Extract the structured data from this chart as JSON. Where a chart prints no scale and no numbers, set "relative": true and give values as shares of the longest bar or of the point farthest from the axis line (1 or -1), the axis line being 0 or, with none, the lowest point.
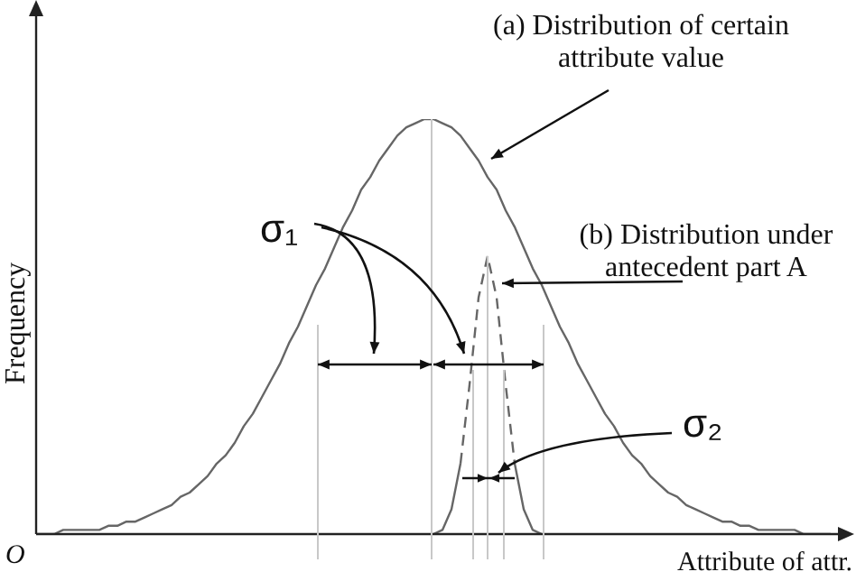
{
  "chart_data": {
    "type": "line",
    "relative": true,
    "xlabel": "Attribute of attr.",
    "ylabel": "Frequency",
    "legend": false,
    "grid": false,
    "marker": "none",
    "categories": [
      null,
      null,
      null,
      null,
      null,
      null,
      null,
      null,
      null,
      null,
      null,
      null,
      null,
      null,
      null,
      null,
      null,
      null,
      null,
      null,
      null,
      null,
      null,
      null,
      null,
      null,
      null,
      null,
      null,
      null,
      null,
      null,
      null,
      null,
      null,
      null,
      null,
      null,
      null,
      null,
      null,
      null,
      null,
      null,
      null,
      null,
      null,
      null,
      null,
      null,
      null,
      null,
      null,
      null,
      null,
      null,
      null,
      null,
      null,
      null,
      null,
      null,
      null,
      null,
      null,
      null,
      null,
      null,
      null,
      null,
      null,
      null,
      null,
      null,
      null,
      null,
      null,
      null,
      null,
      null,
      null,
      null,
      null,
      null,
      null,
      null,
      null,
      null,
      null
    ],
    "series": [
      {
        "color": "#666666",
        "line_style": "solid",
        "values": [
          0.0,
          0.0,
          0.0,
          0.01,
          0.01,
          0.01,
          0.01,
          0.01,
          0.02,
          0.02,
          0.03,
          0.03,
          0.04,
          0.05,
          0.06,
          0.07,
          0.09,
          0.1,
          0.12,
          0.14,
          0.17,
          0.19,
          0.22,
          0.26,
          0.29,
          0.33,
          0.37,
          0.41,
          0.46,
          0.5,
          0.55,
          0.6,
          0.64,
          0.69,
          0.74,
          0.78,
          0.83,
          0.86,
          0.9,
          0.93,
          0.96,
          0.98,
          0.99,
          1.0,
          1.0,
          0.99,
          0.98,
          0.96,
          0.93,
          0.9,
          0.86,
          0.83,
          0.78,
          0.74,
          0.69,
          0.64,
          0.6,
          0.55,
          0.5,
          0.46,
          0.41,
          0.37,
          0.33,
          0.29,
          0.26,
          0.22,
          0.19,
          0.17,
          0.14,
          0.12,
          0.1,
          0.09,
          0.07,
          0.06,
          0.05,
          0.04,
          0.03,
          0.03,
          0.02,
          0.02,
          0.01,
          0.01,
          0.01,
          0.01,
          0.01,
          0.0,
          0.0,
          0.0,
          0.0
        ]
      },
      {
        "color": "#666666",
        "line_style": "solid",
        "values": [
          null,
          null,
          null,
          null,
          null,
          null,
          null,
          null,
          null,
          null,
          null,
          null,
          null,
          null,
          null,
          null,
          null,
          null,
          null,
          null,
          null,
          null,
          null,
          null,
          null,
          null,
          null,
          null,
          null,
          null,
          null,
          null,
          null,
          null,
          null,
          null,
          null,
          null,
          null,
          null,
          null,
          null,
          null,
          null,
          0.0,
          0.01,
          0.06,
          0.17,
          null,
          null,
          null,
          null,
          null,
          0.17,
          0.06,
          0.01,
          0.0,
          null,
          null,
          null,
          null,
          null,
          null,
          null,
          null,
          null,
          null,
          null,
          null,
          null,
          null,
          null,
          null,
          null,
          null,
          null,
          null,
          null,
          null,
          null,
          null,
          null,
          null,
          null,
          null,
          null,
          null,
          null,
          null
        ]
      },
      {
        "color": "#666666",
        "line_style": "dashed",
        "values": [
          null,
          null,
          null,
          null,
          null,
          null,
          null,
          null,
          null,
          null,
          null,
          null,
          null,
          null,
          null,
          null,
          null,
          null,
          null,
          null,
          null,
          null,
          null,
          null,
          null,
          null,
          null,
          null,
          null,
          null,
          null,
          null,
          null,
          null,
          null,
          null,
          null,
          null,
          null,
          null,
          null,
          null,
          null,
          null,
          null,
          null,
          null,
          0.17,
          0.36,
          0.57,
          0.67,
          0.57,
          0.36,
          0.17,
          null,
          null,
          null,
          null,
          null,
          null,
          null,
          null,
          null,
          null,
          null,
          null,
          null,
          null,
          null,
          null,
          null,
          null,
          null,
          null,
          null,
          null,
          null,
          null,
          null,
          null,
          null,
          null,
          null,
          null,
          null,
          null,
          null,
          null,
          null
        ]
      }
    ],
    "annotations": [
      "(a) Distribution of certain attribute value",
      "(b) Distribution under antecedent part A",
      "σ₁",
      "σ₂",
      "O"
    ]
  }
}
